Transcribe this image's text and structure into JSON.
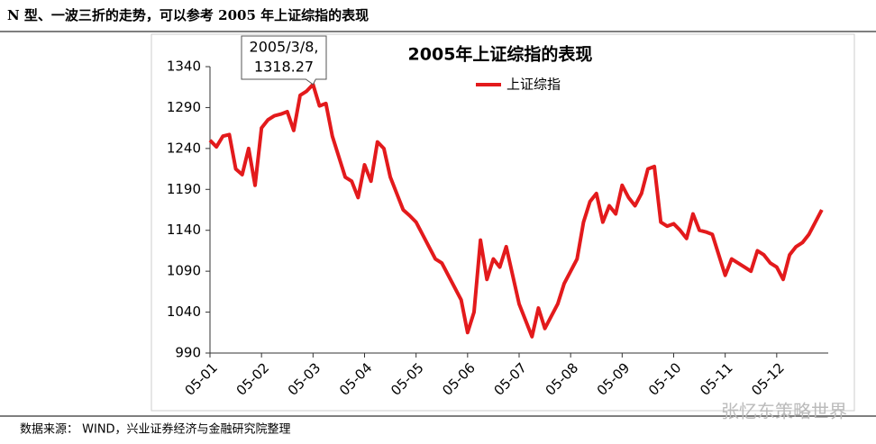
{
  "header": {
    "title": "N 型、一波三折的走势，可以参考 2005 年上证综指的表现"
  },
  "footer": {
    "source": "数据来源： WIND，兴业证券经济与金融研究院整理",
    "watermark": "张忆东策略世界"
  },
  "chart_data": {
    "type": "line",
    "title": "2005年上证综指的表现",
    "x": [
      0,
      1,
      2,
      3,
      4,
      5,
      6,
      7,
      8,
      9,
      10,
      11,
      12,
      13,
      14,
      15,
      16,
      17,
      18,
      19,
      20,
      21,
      22,
      23,
      24,
      25,
      26,
      27,
      28,
      29,
      30,
      31,
      32,
      33,
      34,
      35,
      36,
      37,
      38,
      39,
      40,
      41,
      42,
      43,
      44,
      45,
      46,
      47,
      48,
      49,
      50,
      51,
      52,
      53,
      54,
      55,
      56,
      57,
      58,
      59,
      60,
      61,
      62,
      63,
      64,
      65,
      66,
      67,
      68,
      69,
      70,
      71,
      72,
      73,
      74,
      75,
      76,
      77,
      78,
      79,
      80,
      81,
      82,
      83,
      84,
      85,
      86,
      87,
      88,
      89,
      90,
      91,
      92,
      93,
      94,
      95
    ],
    "series": [
      {
        "name": "上证综指",
        "color": "#e31a1c",
        "values": [
          1250,
          1242,
          1255,
          1257,
          1215,
          1208,
          1240,
          1195,
          1265,
          1275,
          1280,
          1282,
          1285,
          1262,
          1305,
          1310,
          1318.27,
          1292,
          1295,
          1255,
          1230,
          1205,
          1200,
          1180,
          1220,
          1200,
          1248,
          1240,
          1205,
          1185,
          1165,
          1158,
          1150,
          1135,
          1120,
          1105,
          1100,
          1085,
          1070,
          1055,
          1015,
          1040,
          1128,
          1080,
          1105,
          1095,
          1120,
          1085,
          1050,
          1030,
          1010,
          1045,
          1020,
          1035,
          1050,
          1075,
          1090,
          1105,
          1150,
          1175,
          1185,
          1150,
          1170,
          1160,
          1195,
          1180,
          1170,
          1185,
          1215,
          1218,
          1150,
          1145,
          1148,
          1140,
          1130,
          1160,
          1140,
          1138,
          1135,
          1110,
          1085,
          1105,
          1100,
          1095,
          1090,
          1115,
          1110,
          1100,
          1095,
          1080,
          1110,
          1120,
          1125,
          1135,
          1150,
          1165
        ]
      }
    ],
    "xlim": [
      0,
      96
    ],
    "xticks": [
      {
        "value": 0,
        "label": "05-01"
      },
      {
        "value": 8,
        "label": "05-02"
      },
      {
        "value": 16,
        "label": "05-03"
      },
      {
        "value": 24,
        "label": "05-04"
      },
      {
        "value": 32,
        "label": "05-05"
      },
      {
        "value": 40,
        "label": "05-06"
      },
      {
        "value": 48,
        "label": "05-07"
      },
      {
        "value": 56,
        "label": "05-08"
      },
      {
        "value": 64,
        "label": "05-09"
      },
      {
        "value": 72,
        "label": "05-10"
      },
      {
        "value": 80,
        "label": "05-11"
      },
      {
        "value": 88,
        "label": "05-12"
      }
    ],
    "ylim": [
      990,
      1340
    ],
    "yticks": [
      990,
      1040,
      1090,
      1140,
      1190,
      1240,
      1290,
      1340
    ],
    "grid": false,
    "annotation": {
      "date": "2005/3/8,",
      "value": 1318.27,
      "x": 16
    }
  }
}
